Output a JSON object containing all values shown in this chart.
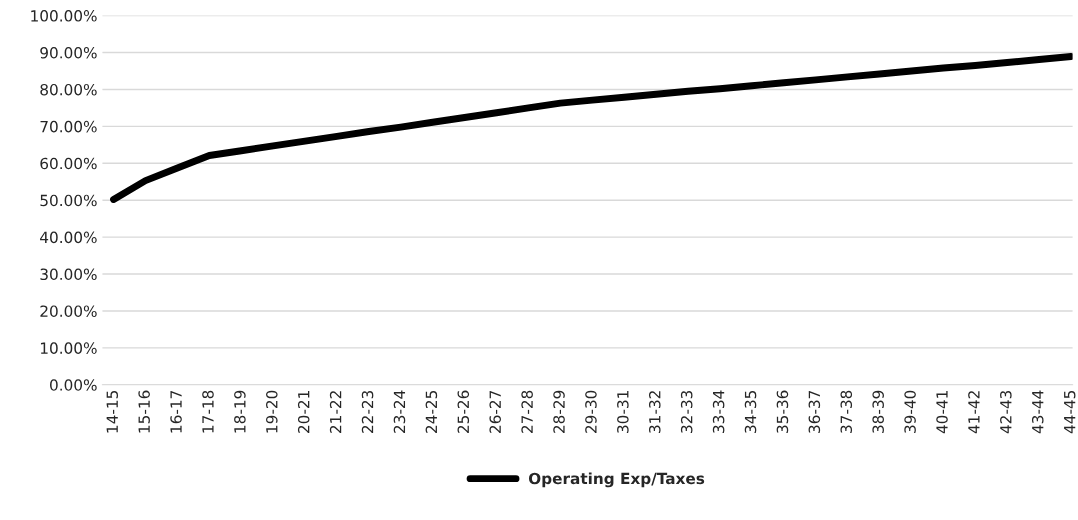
{
  "chart_data": {
    "type": "line",
    "categories": [
      "14-15",
      "15-16",
      "16-17",
      "17-18",
      "18-19",
      "19-20",
      "20-21",
      "21-22",
      "22-23",
      "23-24",
      "24-25",
      "25-26",
      "26-27",
      "27-28",
      "28-29",
      "29-30",
      "30-31",
      "31-32",
      "32-33",
      "33-34",
      "34-35",
      "35-36",
      "36-37",
      "37-38",
      "38-39",
      "39-40",
      "40-41",
      "41-42",
      "42-43",
      "43-44",
      "44-45"
    ],
    "series": [
      {
        "name": "Operating Exp/Taxes",
        "color": "#000000",
        "values": [
          50.2,
          55.3,
          58.7,
          62.1,
          63.4,
          64.7,
          66.0,
          67.3,
          68.6,
          69.8,
          71.1,
          72.4,
          73.7,
          75.0,
          76.3,
          77.1,
          77.9,
          78.7,
          79.5,
          80.2,
          81.0,
          81.8,
          82.6,
          83.4,
          84.2,
          85.0,
          85.8,
          86.5,
          87.3,
          88.1,
          88.9
        ]
      }
    ],
    "ylim": [
      0,
      100
    ],
    "yticks": [
      {
        "value": 0,
        "label": "0.00%"
      },
      {
        "value": 10,
        "label": "10.00%"
      },
      {
        "value": 20,
        "label": "20.00%"
      },
      {
        "value": 30,
        "label": "30.00%"
      },
      {
        "value": 40,
        "label": "40.00%"
      },
      {
        "value": 50,
        "label": "50.00%"
      },
      {
        "value": 60,
        "label": "60.00%"
      },
      {
        "value": 70,
        "label": "70.00%"
      },
      {
        "value": 80,
        "label": "80.00%"
      },
      {
        "value": 90,
        "label": "90.00%"
      },
      {
        "value": 100,
        "label": "100.00%"
      }
    ],
    "grid": "y",
    "legend": "bottom",
    "marker": "none",
    "line_style": "solid"
  }
}
